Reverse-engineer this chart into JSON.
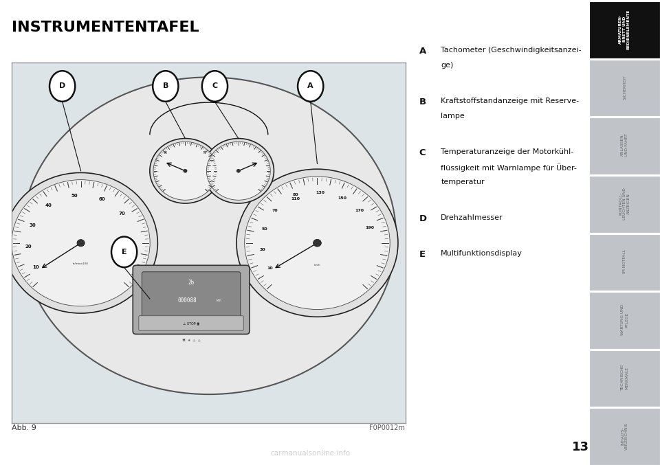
{
  "title": "INSTRUMENTENTAFEL",
  "title_color": "#000000",
  "title_fontsize": 16,
  "bg_color": "#ffffff",
  "page_number": "13",
  "fig_caption": "Abb. 9",
  "fig_code": "F0P0012m",
  "tab_labels": [
    "ARMATUREN-\nBRETT UND\nBEDIENELEMENTE",
    "SICHERHEIT",
    "ANLASSEN\nUND FAHRT",
    "KONTROLL-\nLEUCHTEN UND\nANZEIGEN",
    "IM NOTFALL",
    "WARTUNG UND\nPFLEGE",
    "TECHNISCHE\nMERKMALE",
    "INHALTS-\nVERZEICHNIS"
  ],
  "tab_active": 0,
  "tab_active_bg": "#111111",
  "tab_active_text": "#ffffff",
  "tab_inactive_bg": "#c0c4c8",
  "tab_inactive_text": "#666666",
  "items": [
    {
      "letter": "A",
      "text": "Tachometer (Geschwindigkeitsanzei-\nge)"
    },
    {
      "letter": "B",
      "text": "Kraftstoffstandanzeige mit Reserve-\nlampe"
    },
    {
      "letter": "C",
      "text": "Temperaturanzeige der Motorkühl-\nflüssigkeit mit Warnlampe für Über-\ntemperatur"
    },
    {
      "letter": "D",
      "text": "Drehzahlmesser"
    },
    {
      "letter": "E",
      "text": "Multifunktionsdisplay"
    }
  ],
  "watermark_text": "carmanualsonline.info",
  "watermark_color": "#aaaaaa",
  "img_bg": "#dce4e8",
  "cluster_bg": "#f0f0f0"
}
